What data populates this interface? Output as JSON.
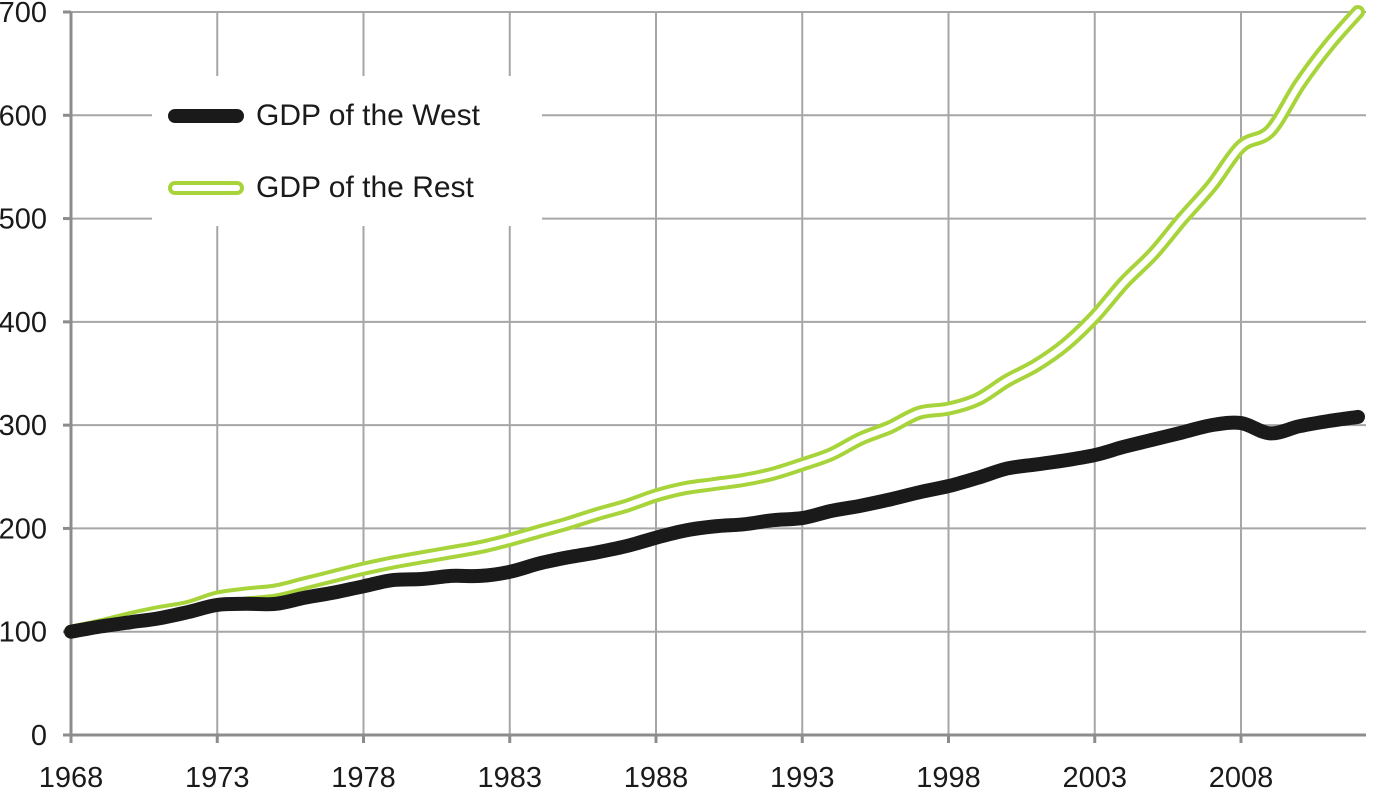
{
  "chart_data": {
    "type": "line",
    "title": "",
    "xlabel": "",
    "ylabel": "",
    "xlim": [
      1968,
      2012
    ],
    "ylim": [
      0,
      700
    ],
    "x_ticks": [
      1968,
      1973,
      1978,
      1983,
      1988,
      1993,
      1998,
      2003,
      2008
    ],
    "y_ticks": [
      0,
      100,
      200,
      300,
      400,
      500,
      600,
      700
    ],
    "grid": true,
    "legend_position": "top-left",
    "x": [
      1968,
      1969,
      1970,
      1971,
      1972,
      1973,
      1974,
      1975,
      1976,
      1977,
      1978,
      1979,
      1980,
      1981,
      1982,
      1983,
      1984,
      1985,
      1986,
      1987,
      1988,
      1989,
      1990,
      1991,
      1992,
      1993,
      1994,
      1995,
      1996,
      1997,
      1998,
      1999,
      2000,
      2001,
      2002,
      2003,
      2004,
      2005,
      2006,
      2007,
      2008,
      2009,
      2010,
      2011,
      2012
    ],
    "series": [
      {
        "name": "GDP of the West",
        "color": "#1a1a1a",
        "style": "thick-solid",
        "values": [
          100,
          105,
          109,
          113,
          119,
          126,
          127,
          127,
          133,
          138,
          144,
          150,
          151,
          154,
          154,
          158,
          166,
          172,
          177,
          183,
          191,
          198,
          202,
          204,
          208,
          210,
          217,
          222,
          228,
          235,
          241,
          249,
          258,
          262,
          266,
          271,
          279,
          286,
          293,
          300,
          302,
          292,
          299,
          304,
          308
        ]
      },
      {
        "name": "GDP of the Rest",
        "color": "#a8d43b",
        "style": "double-outline",
        "values": [
          100,
          106,
          113,
          119,
          124,
          133,
          137,
          140,
          147,
          154,
          161,
          167,
          172,
          177,
          182,
          189,
          197,
          205,
          214,
          222,
          232,
          239,
          243,
          247,
          253,
          262,
          272,
          287,
          298,
          312,
          316,
          325,
          343,
          358,
          378,
          405,
          438,
          466,
          500,
          532,
          570,
          585,
          630,
          668,
          700
        ]
      }
    ]
  }
}
